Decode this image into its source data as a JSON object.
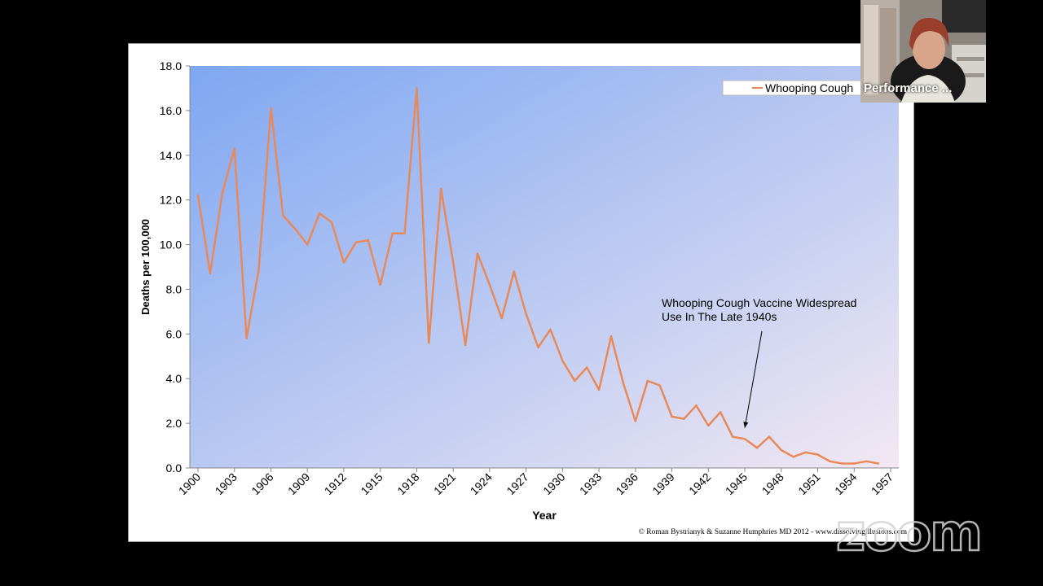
{
  "chart_data": {
    "type": "line",
    "title": "",
    "xlabel": "Year",
    "ylabel": "Deaths per 100,000",
    "ylim": [
      0,
      18
    ],
    "xlim": [
      1900,
      1957
    ],
    "yticks": [
      "0.0",
      "2.0",
      "4.0",
      "6.0",
      "8.0",
      "10.0",
      "12.0",
      "14.0",
      "16.0",
      "18.0"
    ],
    "xticks": [
      "1900",
      "1903",
      "1906",
      "1909",
      "1912",
      "1915",
      "1918",
      "1921",
      "1924",
      "1927",
      "1930",
      "1933",
      "1936",
      "1939",
      "1942",
      "1945",
      "1948",
      "1951",
      "1954",
      "1957"
    ],
    "legend_position": "top-right",
    "series": [
      {
        "name": "Whooping Cough",
        "color": "#e8895a",
        "x": [
          1900,
          1901,
          1902,
          1903,
          1904,
          1905,
          1906,
          1907,
          1908,
          1909,
          1910,
          1911,
          1912,
          1913,
          1914,
          1915,
          1916,
          1917,
          1918,
          1919,
          1920,
          1921,
          1922,
          1923,
          1924,
          1925,
          1926,
          1927,
          1928,
          1929,
          1930,
          1931,
          1932,
          1933,
          1934,
          1935,
          1936,
          1937,
          1938,
          1939,
          1940,
          1941,
          1942,
          1943,
          1944,
          1945,
          1946,
          1947,
          1948,
          1949,
          1950,
          1951,
          1952,
          1953,
          1954,
          1955,
          1956
        ],
        "y": [
          12.2,
          8.7,
          12.3,
          14.3,
          5.8,
          8.9,
          16.1,
          11.3,
          10.7,
          10.0,
          11.4,
          11.0,
          9.2,
          10.1,
          10.2,
          8.2,
          10.5,
          10.5,
          17.0,
          5.6,
          12.5,
          9.2,
          5.5,
          9.6,
          8.2,
          6.7,
          8.8,
          6.9,
          5.4,
          6.2,
          4.8,
          3.9,
          4.5,
          3.5,
          5.9,
          3.8,
          2.1,
          3.9,
          3.7,
          2.3,
          2.2,
          2.8,
          1.9,
          2.5,
          1.4,
          1.3,
          0.9,
          1.4,
          0.8,
          0.5,
          0.7,
          0.6,
          0.3,
          0.2,
          0.2,
          0.3,
          0.2
        ]
      }
    ],
    "annotations": [
      {
        "text_lines": [
          "Whooping Cough  Vaccine Widespread",
          "Use In The Late 1940s"
        ],
        "arrow_to": [
          1945,
          1.8
        ]
      }
    ],
    "credit": "© Roman Bystrianyk & Suzanne Humphries MD 2012 - www.dissolvingillusions.com",
    "colors": {
      "plot_gradient_start": "#7ea7f2",
      "plot_gradient_end": "#f2e8f2",
      "line": "#e8895a"
    }
  },
  "overlay": {
    "participant_name": "Performance ...",
    "watermark": "zoom"
  }
}
